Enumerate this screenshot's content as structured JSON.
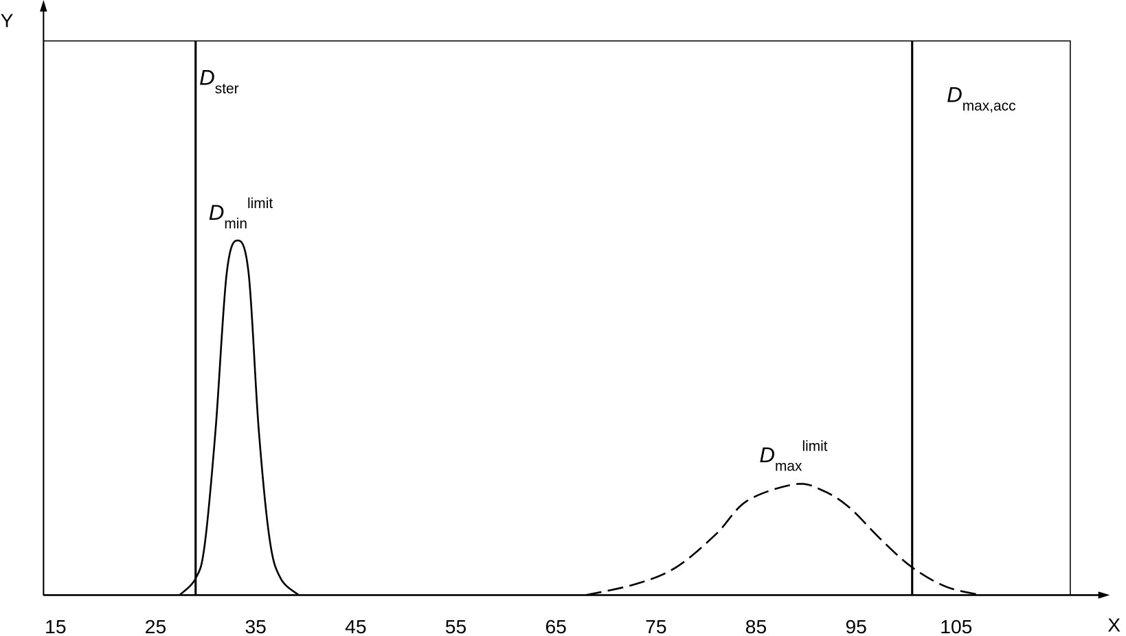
{
  "chart_data": {
    "type": "line",
    "x_label": "X",
    "y_label": "Y",
    "xlim": [
      13.8,
      116.4
    ],
    "ylim": [
      0,
      1
    ],
    "xticks": [
      15,
      25,
      35,
      45,
      55,
      65,
      75,
      85,
      95,
      105
    ],
    "color": "#000000",
    "series": [
      {
        "style": "solid",
        "x": [
          27.4,
          29.0,
          29.9,
          31.0,
          32.1,
          33.2,
          34.3,
          35.3,
          36.4,
          37.5,
          39.3
        ],
        "values": [
          0,
          0.03,
          0.09,
          0.3,
          0.58,
          0.64,
          0.58,
          0.3,
          0.1,
          0.03,
          0
        ]
      },
      {
        "style": "dashed",
        "x": [
          68.0,
          73.0,
          77.0,
          81.0,
          84.1,
          88.9,
          91.5,
          94.2,
          97.5,
          100.6,
          104.0,
          107.5
        ],
        "values": [
          0,
          0.02,
          0.05,
          0.11,
          0.17,
          0.2,
          0.19,
          0.16,
          0.1,
          0.05,
          0.015,
          0
        ]
      }
    ],
    "vlines": [
      29.0,
      100.6
    ],
    "annotations": [
      {
        "main": "D",
        "sub": "ster"
      },
      {
        "main": "D",
        "sub": "max,acc"
      },
      {
        "main": "D",
        "sub": "min",
        "sup": "limit"
      },
      {
        "main": "D",
        "sub": "max",
        "sup": "limit"
      }
    ]
  }
}
